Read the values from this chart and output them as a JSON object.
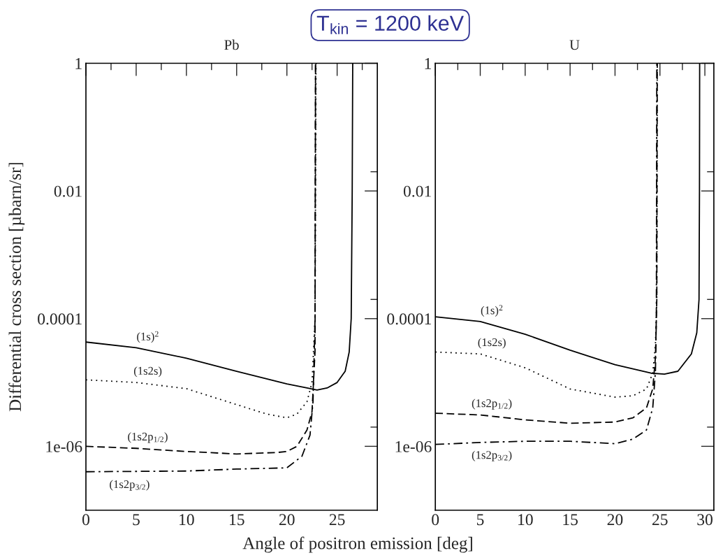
{
  "chart_data": [
    {
      "type": "line",
      "title": "Pb",
      "xlabel": "Angle of positron emission [deg]",
      "ylabel": "Differential cross section [µbarn/sr]",
      "log": "y",
      "grid": false,
      "legend": false,
      "marker": "none",
      "xlim": [
        0,
        29
      ],
      "xticks": [
        0,
        5,
        10,
        15,
        20,
        25,
        {
          "value": 2.5,
          "label": null
        },
        {
          "value": 7.5,
          "label": null
        },
        {
          "value": 12.5,
          "label": null
        },
        {
          "value": 17.5,
          "label": null
        },
        {
          "value": 22.5,
          "label": null
        },
        {
          "value": 27.5,
          "label": null
        }
      ],
      "ylim": [
        1e-07,
        1
      ],
      "yticks": [
        1,
        0.01,
        0.0001,
        1e-06,
        {
          "value": 0.02,
          "label": null
        },
        {
          "value": 0.0002,
          "label": null
        },
        {
          "value": 2e-06,
          "label": null
        }
      ],
      "series": [
        {
          "name": "(1s)$^{2}$",
          "color": "#000000",
          "line_style": "solid",
          "x": [
            0,
            5,
            10,
            15,
            20,
            22,
            23,
            24,
            25,
            25.8,
            26.2,
            26.4,
            26.5,
            26.55
          ],
          "values": [
            4.3e-05,
            3.5e-05,
            2.4e-05,
            1.5e-05,
            9.5e-06,
            8.2e-06,
            7.6e-06,
            8.2e-06,
            1e-05,
            1.5e-05,
            3e-05,
            0.0001,
            0.01,
            1
          ]
        },
        {
          "name": "(1s2s)",
          "color": "#000000",
          "line_style": "dotted",
          "x": [
            0,
            5,
            10,
            15,
            18,
            20,
            21,
            22,
            22.5,
            22.8,
            22.9
          ],
          "values": [
            1.1e-05,
            1e-05,
            8e-06,
            4.5e-06,
            3.2e-06,
            2.8e-06,
            3.2e-06,
            5e-06,
            1e-05,
            0.0001,
            1
          ]
        },
        {
          "name": "(1s2p$_{1/2}$)",
          "color": "#000000",
          "line_style": "dashed",
          "x": [
            0,
            5,
            10,
            15,
            19,
            20,
            21,
            22,
            22.5,
            22.8,
            22.85
          ],
          "values": [
            1e-06,
            9.3e-07,
            8.3e-07,
            7.6e-07,
            8e-07,
            8.3e-07,
            1e-06,
            1.8e-06,
            3.5e-06,
            3e-05,
            1
          ]
        },
        {
          "name": "(1s2p$_{3/2}$)",
          "color": "#000000",
          "line_style": "dashdot",
          "x": [
            0,
            10,
            15,
            20,
            21.5,
            22.3,
            22.6,
            22.8,
            22.85
          ],
          "values": [
            4e-07,
            4.1e-07,
            4.4e-07,
            4.6e-07,
            7e-07,
            1.5e-06,
            5e-06,
            0.0001,
            1
          ]
        }
      ],
      "annotations": [
        "T$_{kin}$ = 1200 keV"
      ]
    },
    {
      "type": "line",
      "title": "U",
      "log": "y",
      "grid": false,
      "legend": false,
      "marker": "none",
      "xlim": [
        0,
        31
      ],
      "xticks": [
        0,
        5,
        10,
        15,
        20,
        25,
        30,
        {
          "value": 2.5,
          "label": null
        },
        {
          "value": 7.5,
          "label": null
        },
        {
          "value": 12.5,
          "label": null
        },
        {
          "value": 17.5,
          "label": null
        },
        {
          "value": 22.5,
          "label": null
        },
        {
          "value": 27.5,
          "label": null
        }
      ],
      "ylim": [
        1e-07,
        1
      ],
      "yticks": [
        1,
        0.01,
        0.0001,
        1e-06,
        {
          "value": 0.02,
          "label": null
        },
        {
          "value": 0.0002,
          "label": null
        },
        {
          "value": 2e-06,
          "label": null
        }
      ],
      "series": [
        {
          "name": "(1s)$^{2}$",
          "color": "#000000",
          "line_style": "solid",
          "x": [
            0,
            5,
            10,
            15,
            20,
            24,
            25.5,
            27,
            28.5,
            29.1,
            29.35,
            29.4,
            29.42
          ],
          "values": [
            0.000107,
            9e-05,
            5.7e-05,
            3.2e-05,
            1.9e-05,
            1.4e-05,
            1.35e-05,
            1.5e-05,
            2.8e-05,
            6e-05,
            0.0002,
            0.01,
            1
          ]
        },
        {
          "name": "(1s2s)",
          "color": "#000000",
          "line_style": "dotted",
          "x": [
            0,
            5,
            10,
            15,
            20,
            22,
            23.5,
            24.2,
            24.5,
            24.65,
            24.7
          ],
          "values": [
            3e-05,
            2.8e-05,
            1.7e-05,
            7.9e-06,
            5.9e-06,
            6.2e-06,
            7.9e-06,
            1.4e-05,
            4e-05,
            0.0002,
            1
          ]
        },
        {
          "name": "(1s2p$_{1/2}$)",
          "color": "#000000",
          "line_style": "dashed",
          "x": [
            0,
            5,
            10,
            15,
            20,
            22,
            23.5,
            24.2,
            24.5,
            24.65,
            24.7
          ],
          "values": [
            3.3e-06,
            3.1e-06,
            2.6e-06,
            2.3e-06,
            2.4e-06,
            2.8e-06,
            4e-06,
            8e-06,
            2.5e-05,
            0.0002,
            1
          ]
        },
        {
          "name": "(1s2p$_{3/2}$)",
          "color": "#000000",
          "line_style": "dashdot",
          "x": [
            0,
            5,
            10,
            15,
            20,
            22,
            23.5,
            24.2,
            24.5,
            24.6,
            24.65
          ],
          "values": [
            1.07e-06,
            1.15e-06,
            1.2e-06,
            1.2e-06,
            1.1e-06,
            1.3e-06,
            1.8e-06,
            4e-06,
            1.5e-05,
            0.0001,
            1
          ]
        }
      ]
    }
  ]
}
